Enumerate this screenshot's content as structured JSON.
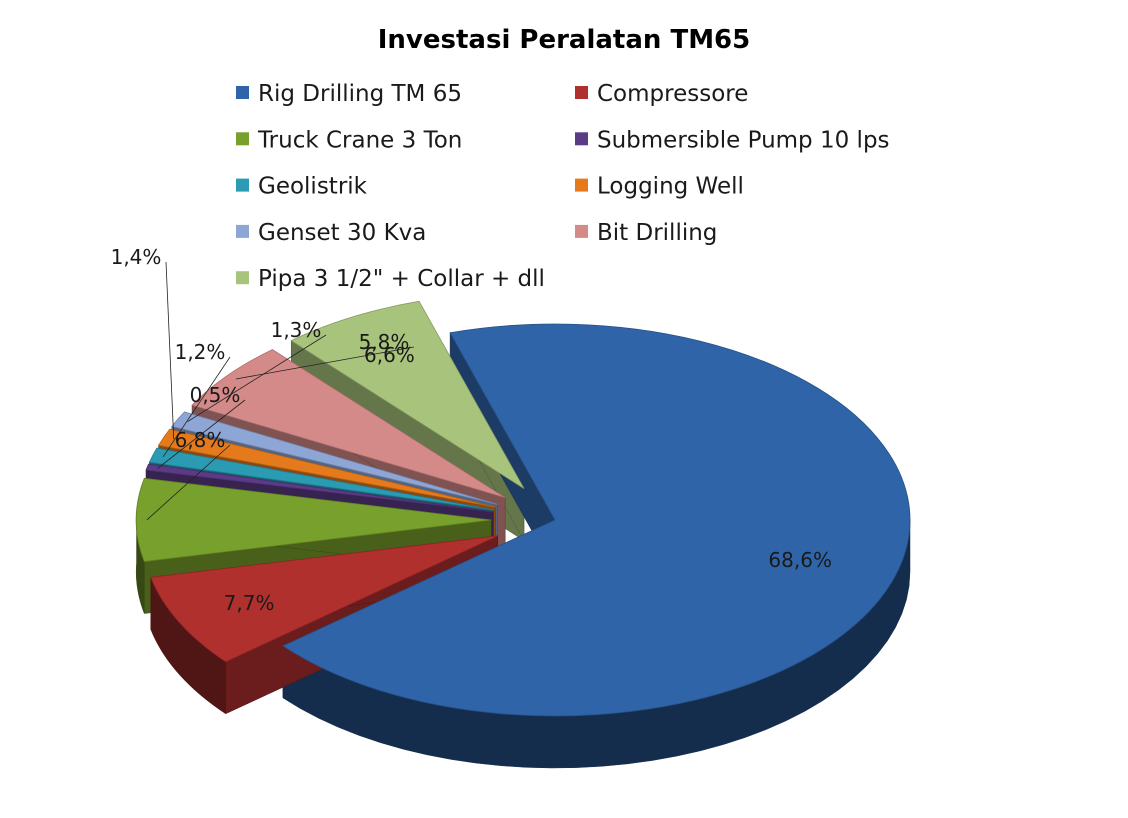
{
  "chart_data": {
    "type": "pie",
    "style": "exploded 3D pie",
    "title": "Investasi Peralatan TM65",
    "legend_position": "top",
    "slices": [
      {
        "name": "Rig Drilling TM 65",
        "value": 68.6,
        "label": "68,6%",
        "color": "#2f64a8"
      },
      {
        "name": "Compressore",
        "value": 7.7,
        "label": "7,7%",
        "color": "#b0302e"
      },
      {
        "name": "Truck Crane 3 Ton",
        "value": 6.8,
        "label": "6,8%",
        "color": "#78a02c"
      },
      {
        "name": "Submersible Pump 10 lps",
        "value": 0.5,
        "label": "0,5%",
        "color": "#5b3a86"
      },
      {
        "name": "Geolistrik",
        "value": 1.2,
        "label": "1,2%",
        "color": "#2a9bb2"
      },
      {
        "name": "Logging Well",
        "value": 1.4,
        "label": "1,4%",
        "color": "#e47a1c"
      },
      {
        "name": "Genset 30 Kva",
        "value": 1.3,
        "label": "1,3%",
        "color": "#8ea6d6"
      },
      {
        "name": "Bit Drilling",
        "value": 5.8,
        "label": "5,8%",
        "color": "#d48a88"
      },
      {
        "name": "Pipa 3 1/2\" + Collar + dll",
        "value": 6.6,
        "label": "6,6%",
        "color": "#a8c47c"
      }
    ]
  }
}
